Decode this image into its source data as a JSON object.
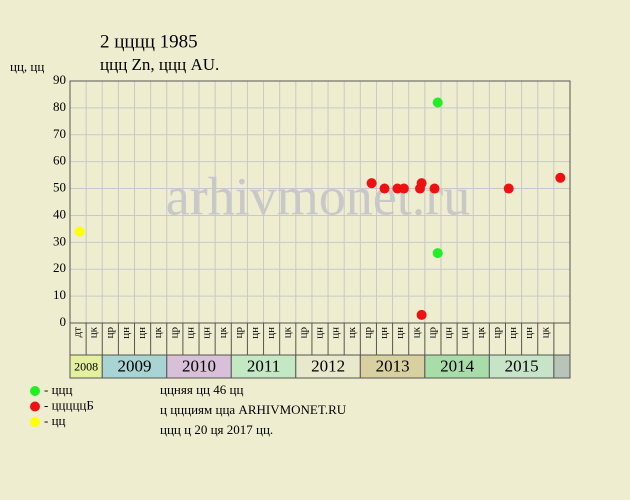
{
  "chart_data": {
    "type": "scatter",
    "title": "2 цццц 1985",
    "subtitle": "ццц Zn, ццц AU.",
    "y_label": "цц, цц",
    "watermark": "arhivmonet.ru",
    "xlim": [
      0,
      31
    ],
    "ylim": [
      0,
      90
    ],
    "yticks": [
      0,
      10,
      20,
      30,
      40,
      50,
      60,
      70,
      80,
      90
    ],
    "grid": true,
    "column_labels": [
      "дт",
      "цк",
      "цр",
      "цн",
      "цн",
      "цк",
      "цр",
      "цн",
      "цн",
      "цк",
      "цр",
      "цн",
      "цн",
      "цк",
      "цр",
      "цн",
      "цн",
      "цк",
      "цр",
      "цн",
      "цн",
      "цк",
      "цр",
      "цн",
      "цн",
      "цк",
      "цр",
      "цн",
      "цн",
      "цк"
    ],
    "years": [
      "2008",
      "2009",
      "2010",
      "2011",
      "2012",
      "2013",
      "2014",
      "2015"
    ],
    "year_colors": [
      "#e4f0a0",
      "#a8d4d4",
      "#d8c0d8",
      "#c4e8c4",
      "#e8e8cc",
      "#d8d0a0",
      "#a8dca8",
      "#c8e4c8"
    ],
    "series": [
      {
        "name": "- ццц",
        "color": "#22ee22",
        "x": [
          22.8,
          22.8
        ],
        "values": [
          82,
          26
        ]
      },
      {
        "name": "- цццццБ",
        "color": "#ee1111",
        "x": [
          18.7,
          19.5,
          20.3,
          20.7,
          21.7,
          21.8,
          21.8,
          22.6,
          27.2,
          30.4
        ],
        "values": [
          52,
          50,
          50,
          50,
          50,
          52,
          3,
          50,
          50,
          54
        ]
      },
      {
        "name": "- цц",
        "color": "#ffff00",
        "x": [
          0.6
        ],
        "values": [
          34
        ]
      }
    ],
    "notes": [
      "ццняя цц 46 цц",
      "ц ццциям цца ARHIVMONET.RU",
      "ццц ц 20 ця 2017 цц."
    ]
  }
}
